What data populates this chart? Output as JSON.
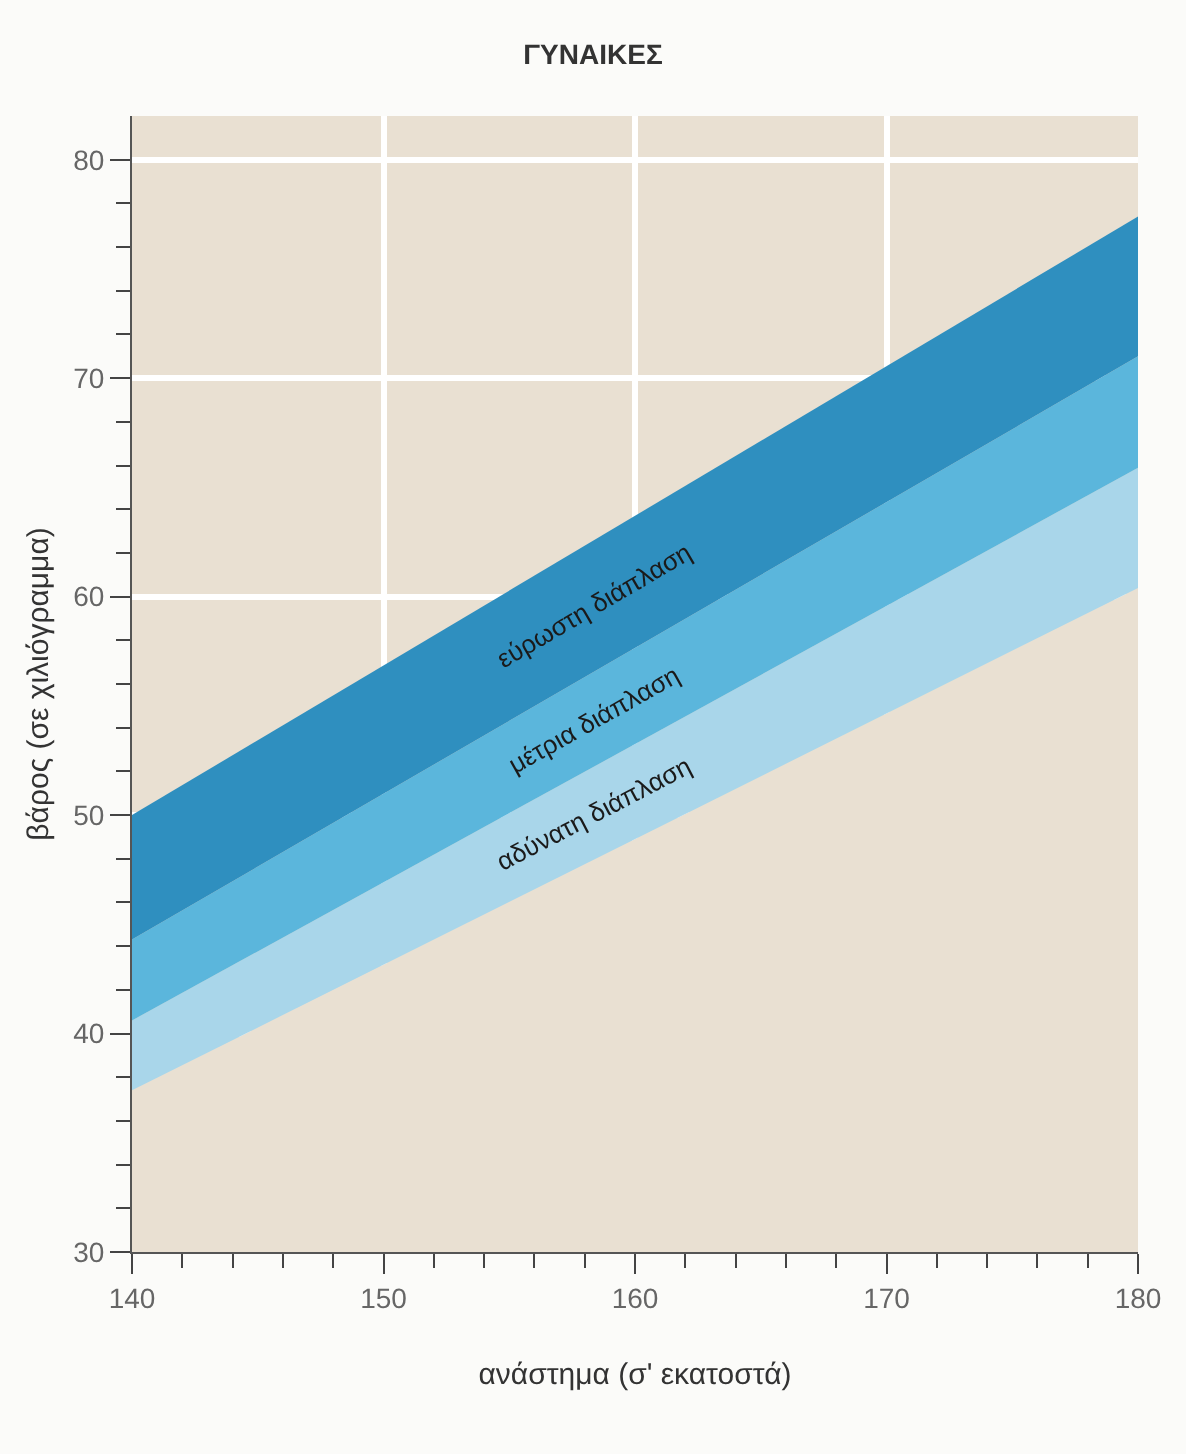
{
  "chart_data": {
    "type": "area",
    "title": "ΓΥΝΑΙΚΕΣ",
    "xlabel": "ανάστημα (σ' εκατοστά)",
    "ylabel": "βάρος (σε χιλιόγραμμα)",
    "x": [
      140,
      180
    ],
    "series": [
      {
        "color": "#e9e0d2",
        "values": [
          37.4,
          60.4
        ]
      },
      {
        "name": "αδύνατη διάπλαση",
        "color": "#a9d6ea",
        "values": [
          40.6,
          65.9
        ]
      },
      {
        "name": "μέτρια διάπλαση",
        "color": "#5bb6dc",
        "values": [
          44.3,
          71.0
        ]
      },
      {
        "name": "εύρωστη διάπλαση",
        "color": "#2f8fbf",
        "values": [
          50,
          77.4
        ]
      }
    ],
    "xlim": [
      140,
      180
    ],
    "ylim": [
      30,
      82
    ],
    "xticks": [
      140,
      {
        "value": 142,
        "label": null
      },
      {
        "value": 144,
        "label": null
      },
      {
        "value": 146,
        "label": null
      },
      {
        "value": 148,
        "label": null
      },
      150,
      {
        "value": 152,
        "label": null
      },
      {
        "value": 154,
        "label": null
      },
      {
        "value": 156,
        "label": null
      },
      {
        "value": 158,
        "label": null
      },
      160,
      {
        "value": 162,
        "label": null
      },
      {
        "value": 164,
        "label": null
      },
      {
        "value": 166,
        "label": null
      },
      {
        "value": 168,
        "label": null
      },
      170,
      {
        "value": 172,
        "label": null
      },
      {
        "value": 174,
        "label": null
      },
      {
        "value": 176,
        "label": null
      },
      {
        "value": 178,
        "label": null
      },
      180
    ],
    "yticks": [
      30,
      {
        "value": 32,
        "label": null
      },
      {
        "value": 34,
        "label": null
      },
      {
        "value": 36,
        "label": null
      },
      {
        "value": 38,
        "label": null
      },
      40,
      {
        "value": 42,
        "label": null
      },
      {
        "value": 44,
        "label": null
      },
      {
        "value": 46,
        "label": null
      },
      {
        "value": 48,
        "label": null
      },
      50,
      {
        "value": 52,
        "label": null
      },
      {
        "value": 54,
        "label": null
      },
      {
        "value": 56,
        "label": null
      },
      {
        "value": 58,
        "label": null
      },
      60,
      {
        "value": 62,
        "label": null
      },
      {
        "value": 64,
        "label": null
      },
      {
        "value": 66,
        "label": null
      },
      {
        "value": 68,
        "label": null
      },
      70,
      {
        "value": 72,
        "label": null
      },
      {
        "value": 74,
        "label": null
      },
      {
        "value": 76,
        "label": null
      },
      {
        "value": 78,
        "label": null
      },
      80
    ],
    "grid": true,
    "legend": false
  }
}
